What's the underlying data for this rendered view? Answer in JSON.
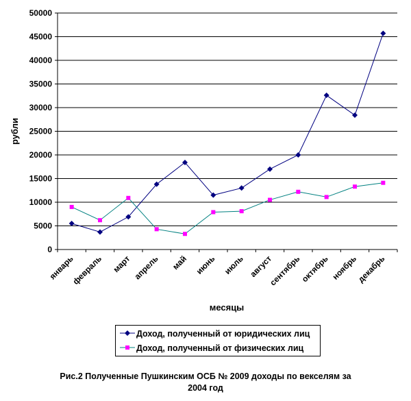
{
  "chart_data": {
    "type": "line",
    "categories": [
      "январь",
      "февраль",
      "март",
      "апрель",
      "май",
      "июнь",
      "июль",
      "август",
      "сентябрь",
      "октябрь",
      "ноябрь",
      "декабрь"
    ],
    "series": [
      {
        "name": "Доход, полученный от юридических лиц",
        "color": "#000080",
        "marker": "diamond",
        "values": [
          5500,
          3700,
          6900,
          13800,
          18400,
          11500,
          13000,
          17000,
          20000,
          32600,
          28400,
          45700
        ]
      },
      {
        "name": "Доход, полученный от физических лиц",
        "color": "#008080",
        "marker_color": "#ff00ff",
        "marker": "square",
        "values": [
          9000,
          6200,
          10900,
          4300,
          3300,
          7900,
          8100,
          10500,
          12200,
          11100,
          13300,
          14100
        ]
      }
    ],
    "xlabel": "месяцы",
    "ylabel": "рубли",
    "ylim": [
      0,
      50000
    ],
    "yticks": [
      0,
      5000,
      10000,
      15000,
      20000,
      25000,
      30000,
      35000,
      40000,
      45000,
      50000
    ],
    "grid": true,
    "legend_position": "bottom"
  },
  "caption": {
    "line1": "Рис.2  Полученные Пушкинским ОСБ № 2009 доходы по векселям за",
    "line2": "2004 год"
  }
}
